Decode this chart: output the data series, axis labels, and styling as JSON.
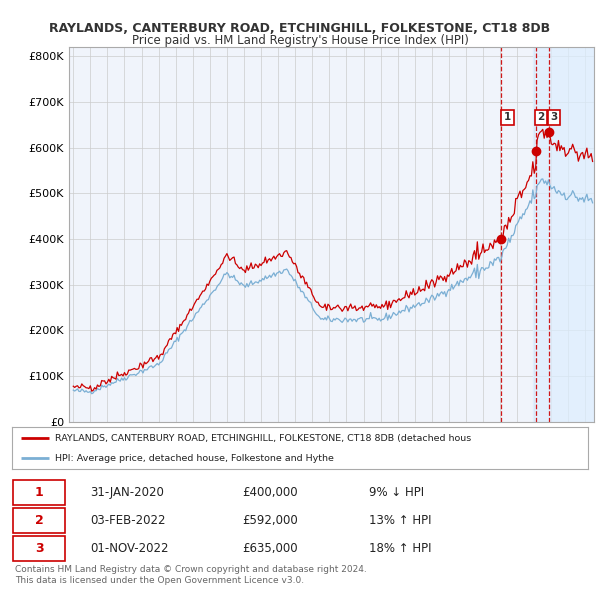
{
  "title1": "RAYLANDS, CANTERBURY ROAD, ETCHINGHILL, FOLKESTONE, CT18 8DB",
  "title2": "Price paid vs. HM Land Registry's House Price Index (HPI)",
  "ylabel_ticks": [
    "£0",
    "£100K",
    "£200K",
    "£300K",
    "£400K",
    "£500K",
    "£600K",
    "£700K",
    "£800K"
  ],
  "ytick_vals": [
    0,
    100000,
    200000,
    300000,
    400000,
    500000,
    600000,
    700000,
    800000
  ],
  "ylim": [
    0,
    820000
  ],
  "xlim_start": 1994.75,
  "xlim_end": 2025.5,
  "hpi_color": "#7bafd4",
  "price_color": "#cc0000",
  "sale_color": "#cc0000",
  "vline_color": "#cc0000",
  "shade_color": "#ddeeff",
  "bg_color": "#ffffff",
  "plot_bg_color": "#f0f4fb",
  "grid_color": "#cccccc",
  "legend_label_red": "RAYLANDS, CANTERBURY ROAD, ETCHINGHILL, FOLKESTONE, CT18 8DB (detached hous",
  "legend_label_blue": "HPI: Average price, detached house, Folkestone and Hythe",
  "sales": [
    {
      "date_num": 2020.08,
      "price": 400000,
      "label": "1"
    },
    {
      "date_num": 2022.09,
      "price": 592000,
      "label": "2"
    },
    {
      "date_num": 2022.84,
      "price": 635000,
      "label": "3"
    }
  ],
  "shade_regions": [
    {
      "x_start": 2021.9,
      "x_end": 2025.5
    }
  ],
  "table_rows": [
    {
      "num": "1",
      "date": "31-JAN-2020",
      "price": "£400,000",
      "change": "9% ↓ HPI"
    },
    {
      "num": "2",
      "date": "03-FEB-2022",
      "price": "£592,000",
      "change": "13% ↑ HPI"
    },
    {
      "num": "3",
      "date": "01-NOV-2022",
      "price": "£635,000",
      "change": "18% ↑ HPI"
    }
  ],
  "footer1": "Contains HM Land Registry data © Crown copyright and database right 2024.",
  "footer2": "This data is licensed under the Open Government Licence v3.0."
}
